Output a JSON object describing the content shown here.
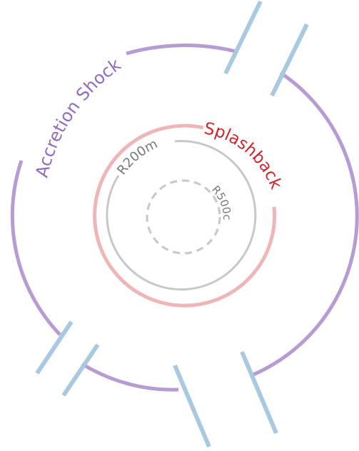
{
  "labels": {
    "accretion_shock": "Accretion Shock",
    "splashback": "Splashback",
    "r200m": "R200m",
    "r500c": "R500c"
  },
  "colors": {
    "accretion_shock": "#b79bd3",
    "splashback": "#efb6b8",
    "splashback_text": "#d0252c",
    "accretion_text": "#8f6cbf",
    "r200m": "#c8c8c8",
    "r500c": "#c8c8c8",
    "radius_text": "#777777",
    "filament": "#a8c9e0"
  }
}
